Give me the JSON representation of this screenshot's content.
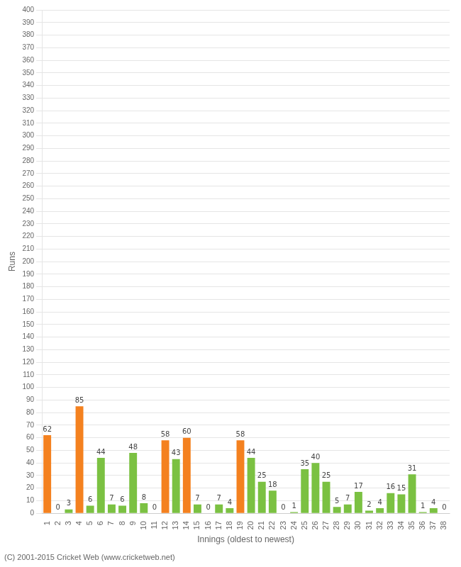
{
  "chart_data": {
    "type": "bar",
    "categories": [
      "1",
      "2",
      "3",
      "4",
      "5",
      "6",
      "7",
      "8",
      "9",
      "10",
      "11",
      "12",
      "13",
      "14",
      "15",
      "16",
      "17",
      "18",
      "19",
      "20",
      "21",
      "22",
      "23",
      "24",
      "25",
      "26",
      "27",
      "28",
      "29",
      "30",
      "31",
      "32",
      "33",
      "34",
      "35",
      "36",
      "37",
      "38"
    ],
    "values": [
      62,
      0,
      3,
      85,
      6,
      44,
      7,
      6,
      48,
      8,
      0,
      58,
      43,
      60,
      7,
      0,
      7,
      4,
      58,
      44,
      25,
      18,
      0,
      1,
      35,
      40,
      25,
      5,
      7,
      17,
      2,
      4,
      16,
      15,
      31,
      1,
      4,
      0
    ],
    "colors": [
      "#f4811f",
      "#7bc142",
      "#7bc142",
      "#f4811f",
      "#7bc142",
      "#7bc142",
      "#7bc142",
      "#7bc142",
      "#7bc142",
      "#7bc142",
      "#7bc142",
      "#f4811f",
      "#7bc142",
      "#f4811f",
      "#7bc142",
      "#7bc142",
      "#7bc142",
      "#7bc142",
      "#f4811f",
      "#7bc142",
      "#7bc142",
      "#7bc142",
      "#7bc142",
      "#7bc142",
      "#7bc142",
      "#7bc142",
      "#7bc142",
      "#7bc142",
      "#7bc142",
      "#7bc142",
      "#7bc142",
      "#7bc142",
      "#7bc142",
      "#7bc142",
      "#7bc142",
      "#7bc142",
      "#7bc142",
      "#7bc142"
    ],
    "xlabel": "Innings (oldest to newest)",
    "ylabel": "Runs",
    "ylim": [
      0,
      400
    ],
    "yticks": [
      0,
      10,
      20,
      30,
      40,
      50,
      60,
      70,
      80,
      90,
      100,
      110,
      120,
      130,
      140,
      150,
      160,
      170,
      180,
      190,
      200,
      210,
      220,
      230,
      240,
      250,
      260,
      270,
      280,
      290,
      300,
      310,
      320,
      330,
      340,
      350,
      360,
      370,
      380,
      390,
      400
    ],
    "grid": true,
    "data_labels": true,
    "annotations": [
      "(C) 2001-2015 Cricket Web (www.cricketweb.net)"
    ]
  }
}
